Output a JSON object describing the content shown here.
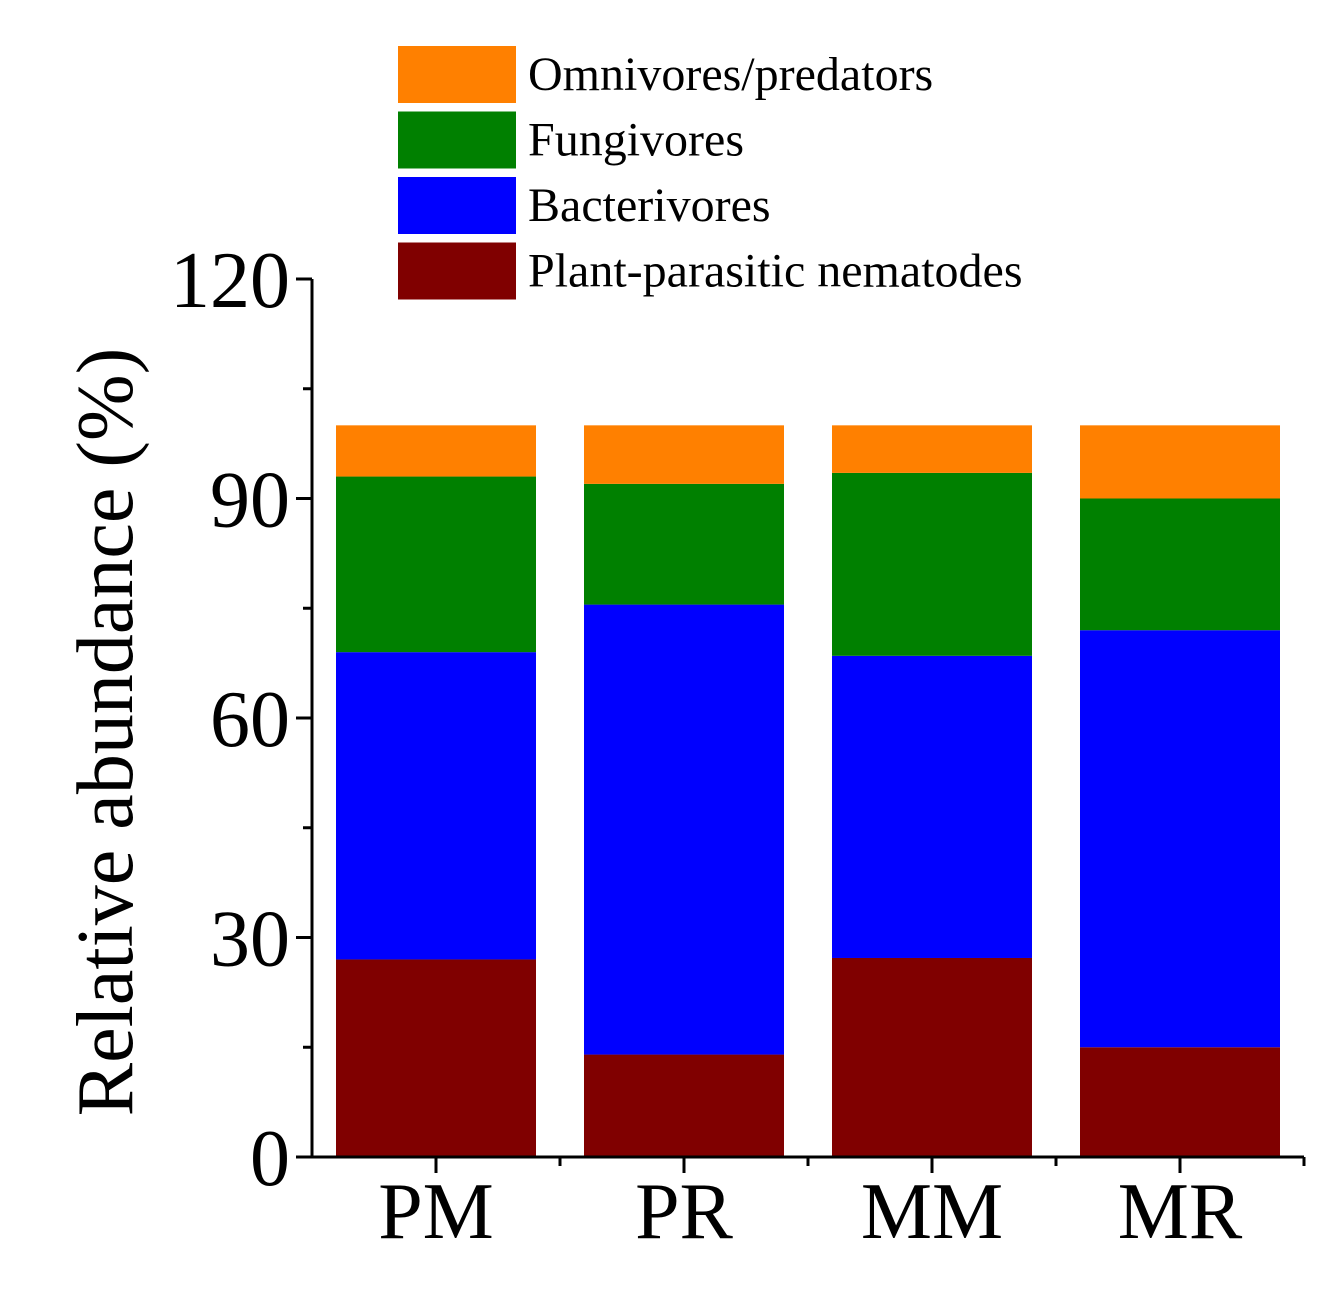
{
  "chart_data": {
    "type": "bar",
    "stacked": true,
    "title": "",
    "xlabel": "",
    "ylabel": "Relative abundance (%)",
    "ylim": [
      0,
      120
    ],
    "yticks": [
      0,
      30,
      60,
      90,
      120
    ],
    "y_minor_tick_step": 15,
    "grid": false,
    "legend_position": "top",
    "categories": [
      "PM",
      "PR",
      "MM",
      "MR"
    ],
    "series": [
      {
        "name": "Plant-parasitic nematodes",
        "color": "#800000",
        "values": [
          27,
          14,
          27.2,
          15
        ]
      },
      {
        "name": "Bacterivores",
        "color": "#0000ff",
        "values": [
          42,
          61.5,
          41.3,
          57
        ]
      },
      {
        "name": "Fungivores",
        "color": "#008000",
        "values": [
          24,
          16.5,
          25,
          18
        ]
      },
      {
        "name": "Omnivores/predators",
        "color": "#ff8000",
        "values": [
          7,
          8,
          6.5,
          10
        ]
      }
    ],
    "legend_order": [
      "Omnivores/predators",
      "Fungivores",
      "Bacterivores",
      "Plant-parasitic nematodes"
    ]
  }
}
